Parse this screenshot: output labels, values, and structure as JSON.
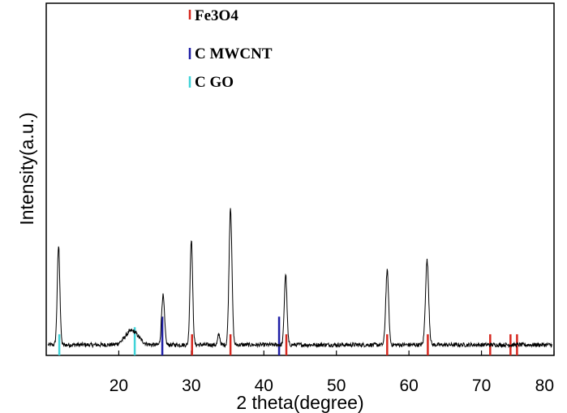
{
  "chart_data": {
    "type": "line",
    "title": "",
    "xlabel": "2 theta(degree)",
    "ylabel": "Intensity(a.u.)",
    "xlim": [
      10,
      80
    ],
    "ylim": [
      0,
      1
    ],
    "x_ticks": [
      20,
      30,
      40,
      50,
      60,
      70,
      80
    ],
    "grid": false,
    "legend_position": "top-left",
    "series": [
      {
        "type": "line",
        "color": "#000000",
        "baseline": 0.03,
        "peaks": [
          {
            "x": 11.7,
            "height": 0.28,
            "width": 0.18
          },
          {
            "x": 21.8,
            "height": 0.04,
            "width": 0.9
          },
          {
            "x": 26.1,
            "height": 0.14,
            "width": 0.2
          },
          {
            "x": 30.0,
            "height": 0.3,
            "width": 0.18
          },
          {
            "x": 33.8,
            "height": 0.03,
            "width": 0.15
          },
          {
            "x": 35.4,
            "height": 0.39,
            "width": 0.2
          },
          {
            "x": 43.0,
            "height": 0.2,
            "width": 0.18
          },
          {
            "x": 57.0,
            "height": 0.21,
            "width": 0.2
          },
          {
            "x": 62.5,
            "height": 0.24,
            "width": 0.22
          }
        ]
      },
      {
        "name": "Fe3O4",
        "type": "reference-sticks",
        "color": "#d6281f",
        "sticks": [
          {
            "x": 30.1,
            "height": 0.06
          },
          {
            "x": 35.4,
            "height": 0.06
          },
          {
            "x": 43.1,
            "height": 0.06
          },
          {
            "x": 57.0,
            "height": 0.06
          },
          {
            "x": 62.6,
            "height": 0.06
          },
          {
            "x": 71.2,
            "height": 0.06
          },
          {
            "x": 74.0,
            "height": 0.06
          },
          {
            "x": 74.9,
            "height": 0.06
          }
        ]
      },
      {
        "name": "C MWCNT",
        "type": "reference-sticks",
        "color": "#1f1fa6",
        "sticks": [
          {
            "x": 26.0,
            "height": 0.11
          },
          {
            "x": 42.1,
            "height": 0.11
          }
        ]
      },
      {
        "name": "C GO",
        "type": "reference-sticks",
        "color": "#3fd3d8",
        "sticks": [
          {
            "x": 11.8,
            "height": 0.06
          },
          {
            "x": 22.2,
            "height": 0.08
          }
        ]
      }
    ]
  }
}
